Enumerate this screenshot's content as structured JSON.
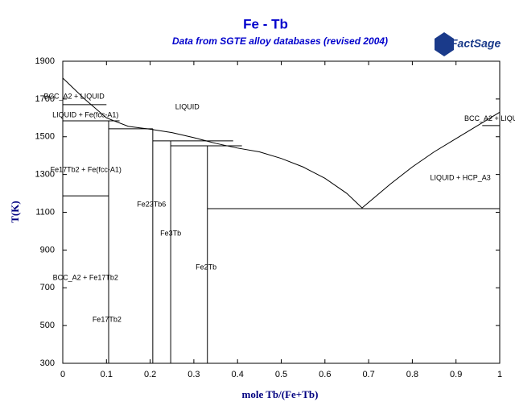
{
  "chart_data": {
    "type": "line",
    "title": "Fe - Tb",
    "subtitle": "Data from SGTE alloy databases (revised 2004)",
    "logo": "FactSage",
    "xlabel": "mole Tb/(Fe+Tb)",
    "ylabel": "T(K)",
    "xlim": [
      0,
      1
    ],
    "ylim": [
      300,
      1900
    ],
    "xticks": [
      0,
      0.1,
      0.2,
      0.3,
      0.4,
      0.5,
      0.6,
      0.7,
      0.8,
      0.9,
      1
    ],
    "yticks": [
      300,
      500,
      700,
      900,
      1100,
      1300,
      1500,
      1700,
      1900
    ],
    "grid": false,
    "color": "#000000",
    "series": [
      {
        "x": [
          0,
          0.05,
          0.1,
          0.15,
          0.2,
          0.25,
          0.3,
          0.35,
          0.4,
          0.45,
          0.5,
          0.55,
          0.6,
          0.65,
          0.685,
          0.75,
          0.8,
          0.85,
          0.9,
          0.95,
          1
        ],
        "values": [
          1811,
          1700,
          1600,
          1555,
          1540,
          1522,
          1495,
          1465,
          1440,
          1420,
          1385,
          1340,
          1280,
          1200,
          1123,
          1250,
          1340,
          1420,
          1490,
          1560,
          1630
        ]
      },
      {
        "x": [
          0,
          0.1
        ],
        "values": [
          1670,
          1670
        ]
      },
      {
        "x": [
          0,
          0.13
        ],
        "values": [
          1584,
          1584
        ]
      },
      {
        "x": [
          0,
          0.105
        ],
        "values": [
          1187,
          1187
        ]
      },
      {
        "x": [
          0.105,
          0.105
        ],
        "values": [
          300,
          1584
        ]
      },
      {
        "x": [
          0.105,
          0.206
        ],
        "values": [
          1542,
          1542
        ]
      },
      {
        "x": [
          0.206,
          0.206
        ],
        "values": [
          300,
          1542
        ]
      },
      {
        "x": [
          0.206,
          0.39
        ],
        "values": [
          1478,
          1478
        ]
      },
      {
        "x": [
          0.247,
          0.247
        ],
        "values": [
          300,
          1478
        ]
      },
      {
        "x": [
          0.247,
          0.41
        ],
        "values": [
          1452,
          1452
        ]
      },
      {
        "x": [
          0.331,
          0.331
        ],
        "values": [
          300,
          1452
        ]
      },
      {
        "x": [
          0.331,
          1
        ],
        "values": [
          1119,
          1119
        ]
      },
      {
        "x": [
          0.96,
          1
        ],
        "values": [
          1559,
          1559
        ]
      }
    ],
    "annotations": [
      {
        "text": "BCC_A2 + LIQUID",
        "x": 0.026,
        "y": 1712
      },
      {
        "text": "LIQUID",
        "x": 0.285,
        "y": 1657
      },
      {
        "text": "LIQUID + Fe(fcc-A1)",
        "x": 0.052,
        "y": 1614
      },
      {
        "text": "BCC_A2 + LIQU",
        "x": 0.98,
        "y": 1594
      },
      {
        "text": "Fe17Tb2 + Fe(fcc-A1)",
        "x": 0.053,
        "y": 1324
      },
      {
        "text": "LIQUID + HCP_A3",
        "x": 0.91,
        "y": 1281
      },
      {
        "text": "Fe23Tb6",
        "x": 0.203,
        "y": 1141
      },
      {
        "text": "Fe3Tb",
        "x": 0.247,
        "y": 987
      },
      {
        "text": "Fe2Tb",
        "x": 0.328,
        "y": 808
      },
      {
        "text": "BCC_A2 + Fe17Tb2",
        "x": 0.052,
        "y": 752
      },
      {
        "text": "Fe17Tb2",
        "x": 0.101,
        "y": 530
      }
    ]
  }
}
